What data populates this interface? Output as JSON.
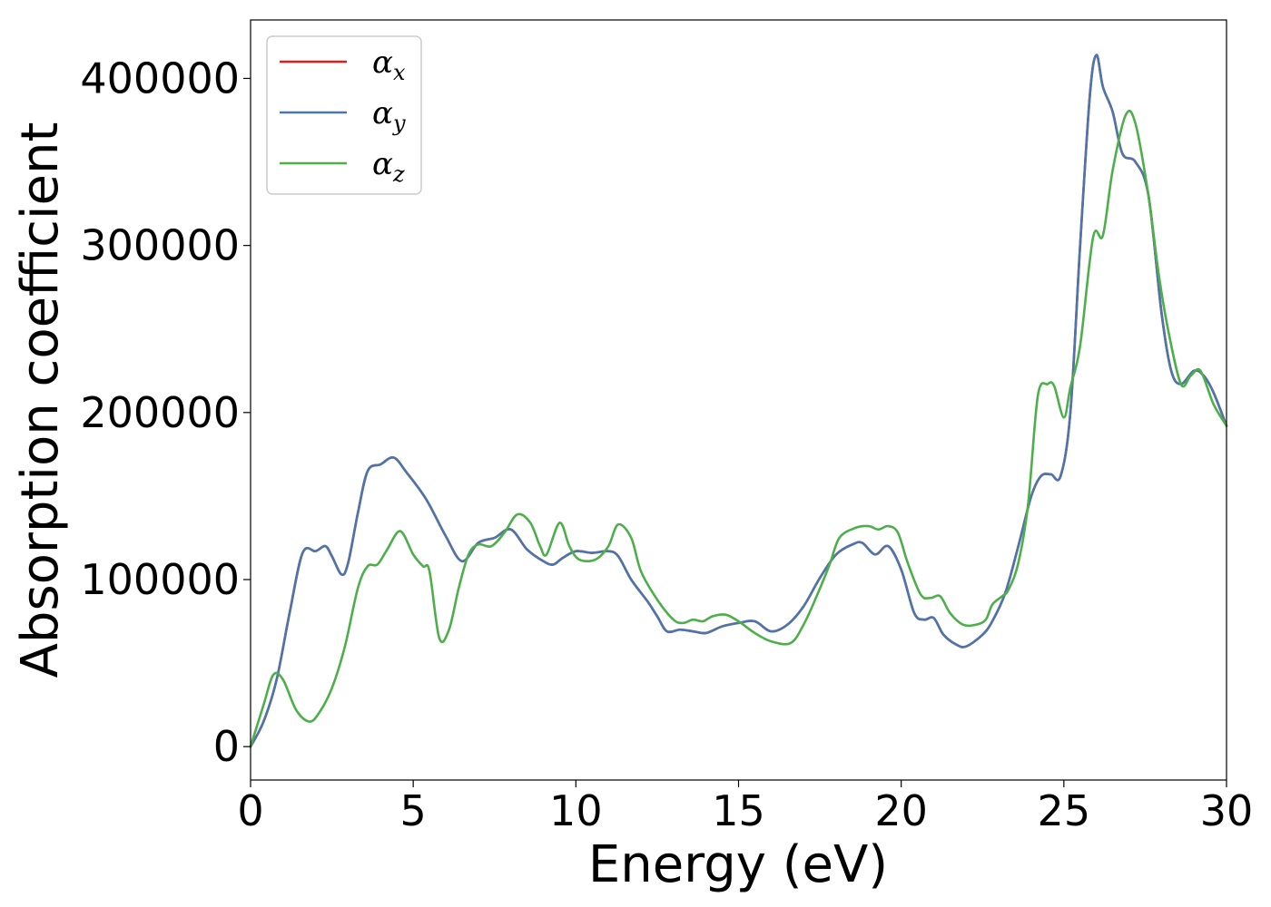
{
  "chart_data": {
    "type": "line",
    "title": "",
    "xlabel": "Energy (eV)",
    "ylabel": "Absorption coefficient",
    "xlim": [
      0,
      30
    ],
    "ylim": [
      -20000,
      435000
    ],
    "xticks": [
      0,
      5,
      10,
      15,
      20,
      25,
      30
    ],
    "yticks": [
      0,
      100000,
      200000,
      300000,
      400000
    ],
    "xtick_labels": [
      "0",
      "5",
      "10",
      "15",
      "20",
      "25",
      "30"
    ],
    "ytick_labels": [
      "0",
      "100000",
      "200000",
      "300000",
      "400000"
    ],
    "grid": false,
    "legend_position": "top-left",
    "series": [
      {
        "name": "α",
        "subscript": "x",
        "color": "#e41a1c",
        "points": [
          [
            0,
            0
          ],
          [
            0.4,
            15000
          ],
          [
            0.8,
            40000
          ],
          [
            1.2,
            80000
          ],
          [
            1.6,
            116000
          ],
          [
            2.0,
            117000
          ],
          [
            2.3,
            120000
          ],
          [
            2.5,
            114000
          ],
          [
            2.8,
            103000
          ],
          [
            3.0,
            110000
          ],
          [
            3.3,
            140000
          ],
          [
            3.6,
            165000
          ],
          [
            4.0,
            169000
          ],
          [
            4.4,
            173000
          ],
          [
            4.8,
            164000
          ],
          [
            5.4,
            148000
          ],
          [
            6.0,
            126000
          ],
          [
            6.5,
            111000
          ],
          [
            7.0,
            122000
          ],
          [
            7.5,
            125000
          ],
          [
            8.0,
            130000
          ],
          [
            8.5,
            118000
          ],
          [
            9.0,
            111000
          ],
          [
            9.3,
            109000
          ],
          [
            9.6,
            113000
          ],
          [
            10.0,
            117000
          ],
          [
            10.5,
            116000
          ],
          [
            11.0,
            117000
          ],
          [
            11.3,
            114000
          ],
          [
            11.7,
            100000
          ],
          [
            12.2,
            87000
          ],
          [
            12.5,
            78000
          ],
          [
            12.8,
            69000
          ],
          [
            13.2,
            70000
          ],
          [
            13.6,
            69000
          ],
          [
            14.0,
            68000
          ],
          [
            14.5,
            72000
          ],
          [
            15.0,
            74000
          ],
          [
            15.5,
            75000
          ],
          [
            16.0,
            69000
          ],
          [
            16.5,
            73000
          ],
          [
            17.0,
            84000
          ],
          [
            17.5,
            101000
          ],
          [
            18.0,
            115000
          ],
          [
            18.5,
            121000
          ],
          [
            18.8,
            122000
          ],
          [
            19.2,
            115000
          ],
          [
            19.6,
            120000
          ],
          [
            20.0,
            106000
          ],
          [
            20.4,
            80000
          ],
          [
            20.7,
            76000
          ],
          [
            21.0,
            77000
          ],
          [
            21.3,
            67000
          ],
          [
            21.7,
            61000
          ],
          [
            22.0,
            60000
          ],
          [
            22.5,
            67000
          ],
          [
            22.8,
            75000
          ],
          [
            23.2,
            92000
          ],
          [
            23.6,
            120000
          ],
          [
            24.0,
            150000
          ],
          [
            24.3,
            162000
          ],
          [
            24.6,
            163000
          ],
          [
            24.9,
            162000
          ],
          [
            25.2,
            200000
          ],
          [
            25.5,
            300000
          ],
          [
            25.8,
            390000
          ],
          [
            26.0,
            414000
          ],
          [
            26.2,
            395000
          ],
          [
            26.5,
            380000
          ],
          [
            26.8,
            355000
          ],
          [
            27.2,
            350000
          ],
          [
            27.6,
            330000
          ],
          [
            28.0,
            260000
          ],
          [
            28.3,
            225000
          ],
          [
            28.6,
            217000
          ],
          [
            29.0,
            225000
          ],
          [
            29.3,
            222000
          ],
          [
            29.6,
            212000
          ],
          [
            30.0,
            192000
          ]
        ]
      },
      {
        "name": "α",
        "subscript": "y",
        "color": "#4a76ad",
        "points": [
          [
            0,
            0
          ],
          [
            0.4,
            15000
          ],
          [
            0.8,
            40000
          ],
          [
            1.2,
            80000
          ],
          [
            1.6,
            116000
          ],
          [
            2.0,
            117000
          ],
          [
            2.3,
            120000
          ],
          [
            2.5,
            114000
          ],
          [
            2.8,
            103000
          ],
          [
            3.0,
            110000
          ],
          [
            3.3,
            140000
          ],
          [
            3.6,
            165000
          ],
          [
            4.0,
            169000
          ],
          [
            4.4,
            173000
          ],
          [
            4.8,
            164000
          ],
          [
            5.4,
            148000
          ],
          [
            6.0,
            126000
          ],
          [
            6.5,
            111000
          ],
          [
            7.0,
            122000
          ],
          [
            7.5,
            125000
          ],
          [
            8.0,
            130000
          ],
          [
            8.5,
            118000
          ],
          [
            9.0,
            111000
          ],
          [
            9.3,
            109000
          ],
          [
            9.6,
            113000
          ],
          [
            10.0,
            117000
          ],
          [
            10.5,
            116000
          ],
          [
            11.0,
            117000
          ],
          [
            11.3,
            114000
          ],
          [
            11.7,
            100000
          ],
          [
            12.2,
            87000
          ],
          [
            12.5,
            78000
          ],
          [
            12.8,
            69000
          ],
          [
            13.2,
            70000
          ],
          [
            13.6,
            69000
          ],
          [
            14.0,
            68000
          ],
          [
            14.5,
            72000
          ],
          [
            15.0,
            74000
          ],
          [
            15.5,
            75000
          ],
          [
            16.0,
            69000
          ],
          [
            16.5,
            73000
          ],
          [
            17.0,
            84000
          ],
          [
            17.5,
            101000
          ],
          [
            18.0,
            115000
          ],
          [
            18.5,
            121000
          ],
          [
            18.8,
            122000
          ],
          [
            19.2,
            115000
          ],
          [
            19.6,
            120000
          ],
          [
            20.0,
            106000
          ],
          [
            20.4,
            80000
          ],
          [
            20.7,
            76000
          ],
          [
            21.0,
            77000
          ],
          [
            21.3,
            67000
          ],
          [
            21.7,
            61000
          ],
          [
            22.0,
            60000
          ],
          [
            22.5,
            67000
          ],
          [
            22.8,
            75000
          ],
          [
            23.2,
            92000
          ],
          [
            23.6,
            120000
          ],
          [
            24.0,
            150000
          ],
          [
            24.3,
            162000
          ],
          [
            24.6,
            163000
          ],
          [
            24.9,
            162000
          ],
          [
            25.2,
            200000
          ],
          [
            25.5,
            300000
          ],
          [
            25.8,
            390000
          ],
          [
            26.0,
            414000
          ],
          [
            26.2,
            395000
          ],
          [
            26.5,
            380000
          ],
          [
            26.8,
            355000
          ],
          [
            27.2,
            350000
          ],
          [
            27.6,
            330000
          ],
          [
            28.0,
            260000
          ],
          [
            28.3,
            225000
          ],
          [
            28.6,
            217000
          ],
          [
            29.0,
            225000
          ],
          [
            29.3,
            222000
          ],
          [
            29.6,
            212000
          ],
          [
            30.0,
            192000
          ]
        ]
      },
      {
        "name": "α",
        "subscript": "z",
        "color": "#4daf4a",
        "points": [
          [
            0,
            0
          ],
          [
            0.4,
            25000
          ],
          [
            0.7,
            43000
          ],
          [
            1.0,
            40000
          ],
          [
            1.4,
            22000
          ],
          [
            1.8,
            15000
          ],
          [
            2.1,
            20000
          ],
          [
            2.5,
            35000
          ],
          [
            2.9,
            60000
          ],
          [
            3.3,
            95000
          ],
          [
            3.6,
            108000
          ],
          [
            3.9,
            109000
          ],
          [
            4.2,
            118000
          ],
          [
            4.6,
            129000
          ],
          [
            5.0,
            115000
          ],
          [
            5.3,
            108000
          ],
          [
            5.5,
            105000
          ],
          [
            5.8,
            65000
          ],
          [
            6.1,
            70000
          ],
          [
            6.4,
            95000
          ],
          [
            6.7,
            115000
          ],
          [
            7.0,
            121000
          ],
          [
            7.4,
            120000
          ],
          [
            7.8,
            128000
          ],
          [
            8.2,
            139000
          ],
          [
            8.6,
            134000
          ],
          [
            8.9,
            120000
          ],
          [
            9.1,
            115000
          ],
          [
            9.5,
            134000
          ],
          [
            9.8,
            120000
          ],
          [
            10.1,
            112000
          ],
          [
            10.6,
            112000
          ],
          [
            11.0,
            120000
          ],
          [
            11.3,
            133000
          ],
          [
            11.7,
            125000
          ],
          [
            12.0,
            105000
          ],
          [
            12.5,
            88000
          ],
          [
            13.0,
            76000
          ],
          [
            13.3,
            74000
          ],
          [
            13.6,
            76000
          ],
          [
            13.9,
            75000
          ],
          [
            14.2,
            78000
          ],
          [
            14.6,
            79000
          ],
          [
            15.0,
            75000
          ],
          [
            15.5,
            68000
          ],
          [
            16.0,
            63000
          ],
          [
            16.6,
            62000
          ],
          [
            17.0,
            73000
          ],
          [
            17.4,
            90000
          ],
          [
            17.8,
            109000
          ],
          [
            18.1,
            125000
          ],
          [
            18.6,
            131000
          ],
          [
            19.0,
            132000
          ],
          [
            19.3,
            130000
          ],
          [
            19.6,
            132000
          ],
          [
            19.9,
            128000
          ],
          [
            20.2,
            110000
          ],
          [
            20.6,
            91000
          ],
          [
            20.9,
            89000
          ],
          [
            21.2,
            90000
          ],
          [
            21.5,
            80000
          ],
          [
            21.9,
            73000
          ],
          [
            22.3,
            73000
          ],
          [
            22.6,
            76000
          ],
          [
            22.8,
            85000
          ],
          [
            23.1,
            90000
          ],
          [
            23.3,
            94000
          ],
          [
            23.6,
            110000
          ],
          [
            23.9,
            145000
          ],
          [
            24.2,
            210000
          ],
          [
            24.5,
            217000
          ],
          [
            24.7,
            216000
          ],
          [
            25.0,
            197000
          ],
          [
            25.2,
            215000
          ],
          [
            25.5,
            240000
          ],
          [
            25.9,
            305000
          ],
          [
            26.2,
            306000
          ],
          [
            26.5,
            345000
          ],
          [
            26.9,
            378000
          ],
          [
            27.2,
            373000
          ],
          [
            27.6,
            330000
          ],
          [
            27.9,
            285000
          ],
          [
            28.2,
            250000
          ],
          [
            28.6,
            217000
          ],
          [
            28.9,
            222000
          ],
          [
            29.2,
            225000
          ],
          [
            29.6,
            205000
          ],
          [
            30.0,
            192000
          ]
        ]
      }
    ]
  }
}
